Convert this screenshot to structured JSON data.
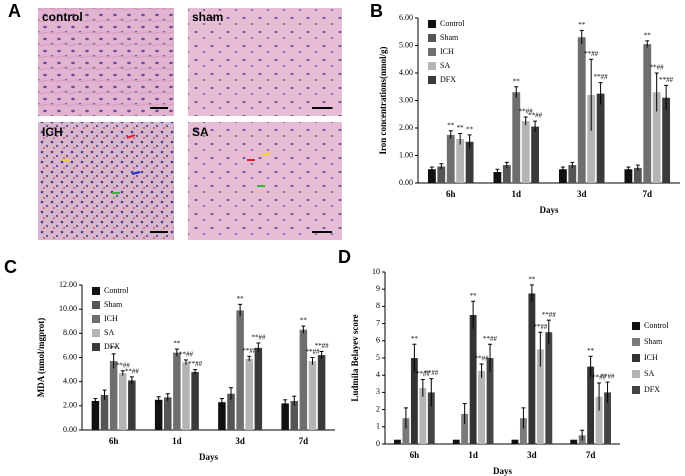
{
  "panel_labels": [
    "A",
    "B",
    "C",
    "D"
  ],
  "micrographs": [
    "control",
    "sham",
    "ICH",
    "SA"
  ],
  "chart_data": [
    {
      "type": "bar",
      "y_label": "Iron concentrations(nmol/g)",
      "x_label": "Days",
      "categories": [
        "6h",
        "1d",
        "3d",
        "7d"
      ],
      "ylim": [
        0,
        6
      ],
      "yticks": [
        {
          "value": 0,
          "label": "0.00"
        },
        {
          "value": 1,
          "label": "1.00"
        },
        {
          "value": 2,
          "label": "2.00"
        },
        {
          "value": 3,
          "label": "3.00"
        },
        {
          "value": 4,
          "label": "4.00"
        },
        {
          "value": 5,
          "label": "5.00"
        },
        {
          "value": 6,
          "label": "6.00"
        }
      ],
      "legend": "upper left",
      "series": [
        {
          "name": "Control",
          "color": "#111111",
          "values": [
            0.5,
            0.4,
            0.5,
            0.5
          ],
          "errors": [
            0.08,
            0.1,
            0.08,
            0.08
          ]
        },
        {
          "name": "Sham",
          "color": "#555555",
          "values": [
            0.6,
            0.65,
            0.65,
            0.55
          ],
          "errors": [
            0.1,
            0.1,
            0.1,
            0.1
          ]
        },
        {
          "name": "ICH",
          "color": "#6e6e6e",
          "values": [
            1.75,
            3.3,
            5.3,
            5.05
          ],
          "errors": [
            0.15,
            0.2,
            0.25,
            0.12
          ],
          "significance": [
            "**",
            "**",
            "**",
            "**"
          ]
        },
        {
          "name": "SA",
          "color": "#b4b4b4",
          "values": [
            1.6,
            2.25,
            3.2,
            3.3
          ],
          "errors": [
            0.2,
            0.15,
            1.3,
            0.7
          ],
          "significance": [
            "**",
            "**##",
            "**##",
            "**##"
          ]
        },
        {
          "name": "DFX",
          "color": "#3a3a3a",
          "values": [
            1.5,
            2.05,
            3.25,
            3.1
          ],
          "errors": [
            0.25,
            0.2,
            0.4,
            0.45
          ],
          "significance": [
            "**",
            "**##",
            "**##",
            "**##"
          ]
        }
      ]
    },
    {
      "type": "bar",
      "y_label": "MDA (nmol/mgprot)",
      "x_label": "Days",
      "categories": [
        "6h",
        "1d",
        "3d",
        "7d"
      ],
      "ylim": [
        0,
        12
      ],
      "yticks": [
        {
          "value": 0,
          "label": "0.00"
        },
        {
          "value": 2,
          "label": "2.00"
        },
        {
          "value": 4,
          "label": "4.00"
        },
        {
          "value": 6,
          "label": "6.00"
        },
        {
          "value": 8,
          "label": "8.00"
        },
        {
          "value": 10,
          "label": "10.00"
        },
        {
          "value": 12,
          "label": "12.00"
        }
      ],
      "legend": "upper left",
      "series": [
        {
          "name": "Control",
          "color": "#111111",
          "values": [
            2.4,
            2.5,
            2.3,
            2.2
          ],
          "errors": [
            0.2,
            0.25,
            0.3,
            0.3
          ]
        },
        {
          "name": "Sham",
          "color": "#555555",
          "values": [
            2.9,
            2.7,
            3.0,
            2.4
          ],
          "errors": [
            0.4,
            0.3,
            0.5,
            0.4
          ]
        },
        {
          "name": "ICH",
          "color": "#6e6e6e",
          "values": [
            5.7,
            6.4,
            9.9,
            8.3
          ],
          "errors": [
            0.6,
            0.3,
            0.5,
            0.3
          ],
          "significance": [
            "**",
            "**",
            "**",
            "**"
          ]
        },
        {
          "name": "SA",
          "color": "#b4b4b4",
          "values": [
            4.7,
            5.6,
            5.9,
            5.7
          ],
          "errors": [
            0.2,
            0.2,
            0.2,
            0.3
          ],
          "significance": [
            "**##",
            "**##",
            "**##",
            "**##"
          ]
        },
        {
          "name": "DFX",
          "color": "#3a3a3a",
          "values": [
            4.1,
            4.8,
            6.8,
            6.2
          ],
          "errors": [
            0.3,
            0.2,
            0.4,
            0.3
          ],
          "significance": [
            "**##",
            "**##",
            "**##",
            "**##"
          ]
        }
      ]
    },
    {
      "type": "bar",
      "y_label": "Ludmila Belayev score",
      "x_label": "Days",
      "categories": [
        "6h",
        "1d",
        "3d",
        "7d"
      ],
      "ylim": [
        0,
        10
      ],
      "yticks": [
        0,
        1,
        2,
        3,
        4,
        5,
        6,
        7,
        8,
        9,
        10
      ],
      "legend": "right",
      "series": [
        {
          "name": "Control",
          "color": "#111111",
          "values": [
            0.25,
            0.25,
            0.25,
            0.25
          ]
        },
        {
          "name": "Sham",
          "color": "#7a7a7a",
          "values": [
            1.5,
            1.75,
            1.5,
            0.5
          ],
          "errors": [
            0.6,
            0.6,
            0.6,
            0.3
          ]
        },
        {
          "name": "ICH",
          "color": "#333333",
          "values": [
            5.0,
            7.5,
            8.75,
            4.5
          ],
          "errors": [
            0.8,
            0.8,
            0.5,
            0.6
          ],
          "significance": [
            "**",
            "**",
            "**",
            "**"
          ]
        },
        {
          "name": "SA",
          "color": "#b4b4b4",
          "values": [
            3.25,
            4.25,
            5.5,
            2.75
          ],
          "errors": [
            0.5,
            0.4,
            1.0,
            0.8
          ],
          "significance": [
            "**##",
            "**##",
            "**##",
            "**##"
          ]
        },
        {
          "name": "DFX",
          "color": "#444444",
          "values": [
            3.0,
            5.0,
            6.5,
            3.0
          ],
          "errors": [
            0.8,
            0.8,
            0.7,
            0.6
          ],
          "significance": [
            "**##",
            "**##",
            "**##",
            "**##"
          ]
        }
      ]
    }
  ]
}
